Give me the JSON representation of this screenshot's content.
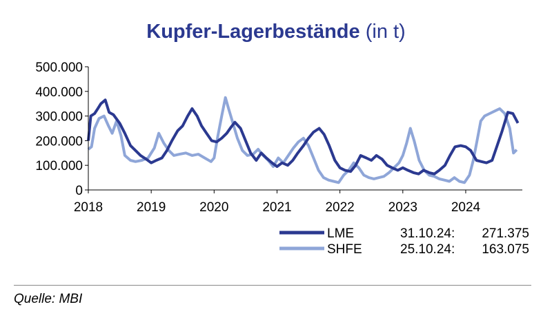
{
  "title": {
    "main": "Kupfer-Lagerbestände",
    "sub": "(in t)"
  },
  "source": "Quelle: MBI",
  "colors": {
    "LME": "#2b3990",
    "SHFE": "#8fa6d8"
  },
  "legend": [
    {
      "name": "LME",
      "date": "31.10.24:",
      "value": "271.375"
    },
    {
      "name": "SHFE",
      "date": "25.10.24:",
      "value": "163.075"
    }
  ],
  "chart_data": {
    "type": "line",
    "title": "Kupfer-Lagerbestände (in t)",
    "xlabel": "",
    "ylabel": "",
    "xlim": [
      2018,
      2024.9
    ],
    "ylim": [
      0,
      500000
    ],
    "x_ticks": [
      2018,
      2019,
      2020,
      2021,
      2022,
      2023,
      2024
    ],
    "x_tick_labels": [
      "2018",
      "2019",
      "2020",
      "2021",
      "2022",
      "2023",
      "2024"
    ],
    "y_ticks": [
      0,
      100000,
      200000,
      300000,
      400000,
      500000
    ],
    "y_tick_labels": [
      "0",
      "100.000",
      "200.000",
      "300.000",
      "400.000",
      "500.000"
    ],
    "legend_position": "bottom-right",
    "grid": false,
    "series": [
      {
        "name": "LME",
        "points": [
          [
            2018.0,
            200000
          ],
          [
            2018.04,
            300000
          ],
          [
            2018.1,
            310000
          ],
          [
            2018.15,
            330000
          ],
          [
            2018.2,
            350000
          ],
          [
            2018.27,
            365000
          ],
          [
            2018.33,
            315000
          ],
          [
            2018.4,
            305000
          ],
          [
            2018.5,
            270000
          ],
          [
            2018.58,
            230000
          ],
          [
            2018.67,
            180000
          ],
          [
            2018.75,
            160000
          ],
          [
            2018.83,
            140000
          ],
          [
            2018.92,
            125000
          ],
          [
            2019.0,
            110000
          ],
          [
            2019.08,
            120000
          ],
          [
            2019.17,
            130000
          ],
          [
            2019.25,
            160000
          ],
          [
            2019.33,
            200000
          ],
          [
            2019.42,
            240000
          ],
          [
            2019.5,
            260000
          ],
          [
            2019.58,
            300000
          ],
          [
            2019.65,
            330000
          ],
          [
            2019.73,
            300000
          ],
          [
            2019.8,
            260000
          ],
          [
            2019.88,
            230000
          ],
          [
            2019.96,
            200000
          ],
          [
            2020.04,
            195000
          ],
          [
            2020.12,
            210000
          ],
          [
            2020.2,
            230000
          ],
          [
            2020.27,
            255000
          ],
          [
            2020.33,
            275000
          ],
          [
            2020.42,
            250000
          ],
          [
            2020.5,
            200000
          ],
          [
            2020.58,
            150000
          ],
          [
            2020.67,
            120000
          ],
          [
            2020.75,
            150000
          ],
          [
            2020.83,
            130000
          ],
          [
            2020.92,
            110000
          ],
          [
            2021.0,
            95000
          ],
          [
            2021.08,
            110000
          ],
          [
            2021.17,
            100000
          ],
          [
            2021.25,
            120000
          ],
          [
            2021.33,
            150000
          ],
          [
            2021.42,
            180000
          ],
          [
            2021.5,
            210000
          ],
          [
            2021.58,
            235000
          ],
          [
            2021.67,
            250000
          ],
          [
            2021.75,
            225000
          ],
          [
            2021.83,
            180000
          ],
          [
            2021.92,
            120000
          ],
          [
            2022.0,
            90000
          ],
          [
            2022.08,
            80000
          ],
          [
            2022.17,
            75000
          ],
          [
            2022.25,
            100000
          ],
          [
            2022.33,
            140000
          ],
          [
            2022.42,
            130000
          ],
          [
            2022.5,
            120000
          ],
          [
            2022.58,
            140000
          ],
          [
            2022.67,
            125000
          ],
          [
            2022.75,
            100000
          ],
          [
            2022.83,
            90000
          ],
          [
            2022.92,
            80000
          ],
          [
            2023.0,
            90000
          ],
          [
            2023.08,
            80000
          ],
          [
            2023.17,
            70000
          ],
          [
            2023.25,
            65000
          ],
          [
            2023.33,
            80000
          ],
          [
            2023.42,
            70000
          ],
          [
            2023.5,
            65000
          ],
          [
            2023.58,
            80000
          ],
          [
            2023.67,
            100000
          ],
          [
            2023.75,
            140000
          ],
          [
            2023.83,
            175000
          ],
          [
            2023.92,
            180000
          ],
          [
            2024.0,
            175000
          ],
          [
            2024.08,
            160000
          ],
          [
            2024.17,
            120000
          ],
          [
            2024.25,
            115000
          ],
          [
            2024.33,
            110000
          ],
          [
            2024.42,
            120000
          ],
          [
            2024.5,
            180000
          ],
          [
            2024.58,
            240000
          ],
          [
            2024.67,
            315000
          ],
          [
            2024.75,
            310000
          ],
          [
            2024.83,
            271375
          ]
        ]
      },
      {
        "name": "SHFE",
        "points": [
          [
            2018.0,
            165000
          ],
          [
            2018.05,
            175000
          ],
          [
            2018.1,
            250000
          ],
          [
            2018.17,
            290000
          ],
          [
            2018.25,
            300000
          ],
          [
            2018.32,
            260000
          ],
          [
            2018.38,
            230000
          ],
          [
            2018.45,
            280000
          ],
          [
            2018.52,
            220000
          ],
          [
            2018.58,
            140000
          ],
          [
            2018.67,
            120000
          ],
          [
            2018.75,
            115000
          ],
          [
            2018.85,
            120000
          ],
          [
            2018.95,
            130000
          ],
          [
            2019.05,
            170000
          ],
          [
            2019.12,
            230000
          ],
          [
            2019.2,
            190000
          ],
          [
            2019.28,
            160000
          ],
          [
            2019.36,
            140000
          ],
          [
            2019.45,
            145000
          ],
          [
            2019.55,
            150000
          ],
          [
            2019.65,
            140000
          ],
          [
            2019.75,
            145000
          ],
          [
            2019.85,
            130000
          ],
          [
            2019.95,
            115000
          ],
          [
            2020.0,
            130000
          ],
          [
            2020.06,
            220000
          ],
          [
            2020.12,
            300000
          ],
          [
            2020.18,
            375000
          ],
          [
            2020.23,
            330000
          ],
          [
            2020.3,
            270000
          ],
          [
            2020.37,
            210000
          ],
          [
            2020.45,
            160000
          ],
          [
            2020.53,
            140000
          ],
          [
            2020.62,
            145000
          ],
          [
            2020.7,
            165000
          ],
          [
            2020.78,
            140000
          ],
          [
            2020.86,
            120000
          ],
          [
            2020.94,
            95000
          ],
          [
            2021.02,
            130000
          ],
          [
            2021.1,
            110000
          ],
          [
            2021.18,
            140000
          ],
          [
            2021.26,
            170000
          ],
          [
            2021.34,
            195000
          ],
          [
            2021.42,
            210000
          ],
          [
            2021.5,
            180000
          ],
          [
            2021.58,
            130000
          ],
          [
            2021.66,
            80000
          ],
          [
            2021.74,
            50000
          ],
          [
            2021.82,
            40000
          ],
          [
            2021.9,
            35000
          ],
          [
            2021.98,
            30000
          ],
          [
            2022.06,
            60000
          ],
          [
            2022.14,
            80000
          ],
          [
            2022.22,
            110000
          ],
          [
            2022.3,
            90000
          ],
          [
            2022.38,
            60000
          ],
          [
            2022.46,
            50000
          ],
          [
            2022.54,
            45000
          ],
          [
            2022.62,
            50000
          ],
          [
            2022.7,
            55000
          ],
          [
            2022.78,
            70000
          ],
          [
            2022.86,
            90000
          ],
          [
            2022.94,
            110000
          ],
          [
            2023.0,
            140000
          ],
          [
            2023.06,
            190000
          ],
          [
            2023.12,
            250000
          ],
          [
            2023.18,
            200000
          ],
          [
            2023.26,
            120000
          ],
          [
            2023.34,
            80000
          ],
          [
            2023.42,
            60000
          ],
          [
            2023.5,
            55000
          ],
          [
            2023.58,
            45000
          ],
          [
            2023.66,
            40000
          ],
          [
            2023.74,
            35000
          ],
          [
            2023.82,
            50000
          ],
          [
            2023.9,
            35000
          ],
          [
            2023.98,
            30000
          ],
          [
            2024.06,
            60000
          ],
          [
            2024.12,
            120000
          ],
          [
            2024.18,
            200000
          ],
          [
            2024.24,
            280000
          ],
          [
            2024.3,
            300000
          ],
          [
            2024.38,
            310000
          ],
          [
            2024.46,
            320000
          ],
          [
            2024.54,
            330000
          ],
          [
            2024.62,
            310000
          ],
          [
            2024.7,
            250000
          ],
          [
            2024.76,
            150000
          ],
          [
            2024.81,
            163075
          ]
        ]
      }
    ]
  }
}
